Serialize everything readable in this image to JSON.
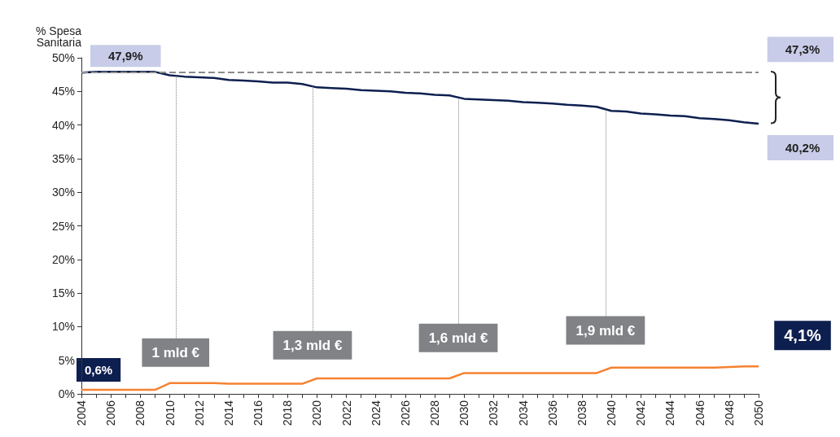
{
  "chart_data": {
    "type": "line",
    "ylabel": "% Spesa\nSanitaria",
    "x": [
      2004,
      2005,
      2006,
      2007,
      2008,
      2009,
      2010,
      2011,
      2012,
      2013,
      2014,
      2015,
      2016,
      2017,
      2018,
      2019,
      2020,
      2021,
      2022,
      2023,
      2024,
      2025,
      2026,
      2027,
      2028,
      2029,
      2030,
      2031,
      2032,
      2033,
      2034,
      2035,
      2036,
      2037,
      2038,
      2039,
      2040,
      2041,
      2042,
      2043,
      2044,
      2045,
      2046,
      2047,
      2048,
      2049,
      2050
    ],
    "series": [
      {
        "color": "#0d1f4f",
        "values": [
          47.8,
          47.9,
          47.9,
          47.9,
          47.9,
          47.9,
          47.4,
          47.2,
          47.1,
          47.0,
          46.7,
          46.6,
          46.5,
          46.3,
          46.3,
          46.1,
          45.6,
          45.5,
          45.4,
          45.2,
          45.1,
          45.0,
          44.8,
          44.7,
          44.5,
          44.4,
          43.9,
          43.8,
          43.7,
          43.6,
          43.4,
          43.3,
          43.2,
          43.0,
          42.9,
          42.7,
          42.1,
          42.0,
          41.7,
          41.6,
          41.4,
          41.3,
          41.0,
          40.9,
          40.7,
          40.4,
          40.2
        ]
      },
      {
        "color": "#f58232",
        "values": [
          0.6,
          0.6,
          0.6,
          0.6,
          0.6,
          0.6,
          1.6,
          1.6,
          1.6,
          1.6,
          1.5,
          1.5,
          1.5,
          1.5,
          1.5,
          1.5,
          2.3,
          2.3,
          2.3,
          2.3,
          2.3,
          2.3,
          2.3,
          2.3,
          2.3,
          2.3,
          3.1,
          3.1,
          3.1,
          3.1,
          3.1,
          3.1,
          3.1,
          3.1,
          3.1,
          3.1,
          3.9,
          3.9,
          3.9,
          3.9,
          3.9,
          3.9,
          3.9,
          3.9,
          4.0,
          4.1,
          4.1
        ]
      }
    ],
    "xlim": [
      2004,
      2050
    ],
    "xticks": [
      2004,
      {
        "value": 2005,
        "label": null
      },
      2006,
      {
        "value": 2007,
        "label": null
      },
      2008,
      {
        "value": 2009,
        "label": null
      },
      2010,
      {
        "value": 2011,
        "label": null
      },
      2012,
      {
        "value": 2013,
        "label": null
      },
      2014,
      {
        "value": 2015,
        "label": null
      },
      2016,
      {
        "value": 2017,
        "label": null
      },
      2018,
      {
        "value": 2019,
        "label": null
      },
      2020,
      {
        "value": 2021,
        "label": null
      },
      2022,
      {
        "value": 2023,
        "label": null
      },
      2024,
      {
        "value": 2025,
        "label": null
      },
      2026,
      {
        "value": 2027,
        "label": null
      },
      2028,
      {
        "value": 2029,
        "label": null
      },
      2030,
      {
        "value": 2031,
        "label": null
      },
      2032,
      {
        "value": 2033,
        "label": null
      },
      2034,
      {
        "value": 2035,
        "label": null
      },
      2036,
      {
        "value": 2037,
        "label": null
      },
      2038,
      {
        "value": 2039,
        "label": null
      },
      2040,
      {
        "value": 2041,
        "label": null
      },
      2042,
      {
        "value": 2043,
        "label": null
      },
      2044,
      {
        "value": 2045,
        "label": null
      },
      2046,
      {
        "value": 2047,
        "label": null
      },
      2048,
      {
        "value": 2049,
        "label": null
      },
      2050
    ],
    "ylim": [
      0,
      50
    ],
    "yticks": [
      {
        "value": 0,
        "label": "0%"
      },
      {
        "value": 5,
        "label": "5%"
      },
      {
        "value": 10,
        "label": "10%"
      },
      {
        "value": 15,
        "label": "15%"
      },
      {
        "value": 20,
        "label": "20%"
      },
      {
        "value": 25,
        "label": "25%"
      },
      {
        "value": 30,
        "label": "30%"
      },
      {
        "value": 35,
        "label": "35%"
      },
      {
        "value": 40,
        "label": "40%"
      },
      {
        "value": 45,
        "label": "45%"
      },
      {
        "value": 50,
        "label": "50%"
      }
    ],
    "ref_lines": [
      {
        "axis": "y",
        "value": 47.9,
        "color": "#8c8c8c",
        "line_style": "dashed"
      },
      {
        "axis": "x",
        "value": 2010.4,
        "label": "1 mld €",
        "color": "#808285",
        "line_style": "dotted"
      },
      {
        "axis": "x",
        "value": 2019.7,
        "label": "1,3 mld €",
        "color": "#808285",
        "line_style": "dotted"
      },
      {
        "axis": "x",
        "value": 2029.6,
        "label": "1,6 mld €",
        "color": "#808285",
        "line_style": "dotted"
      },
      {
        "axis": "x",
        "value": 2039.6,
        "label": "1,9 mld €",
        "color": "#808285",
        "line_style": "dotted"
      }
    ],
    "annotations": [
      {
        "text": "47,9%",
        "x": 2007,
        "y": 47.9
      },
      "47,3%",
      {
        "text": "40,2%",
        "x": 2050,
        "y": 40.2
      },
      {
        "text": "0,6%",
        "x": 2004,
        "y": 0.6
      },
      {
        "text": "4,1%",
        "x": 2050,
        "y": 4.1
      }
    ],
    "grid": false,
    "marker": "none",
    "line_style": "solid"
  }
}
